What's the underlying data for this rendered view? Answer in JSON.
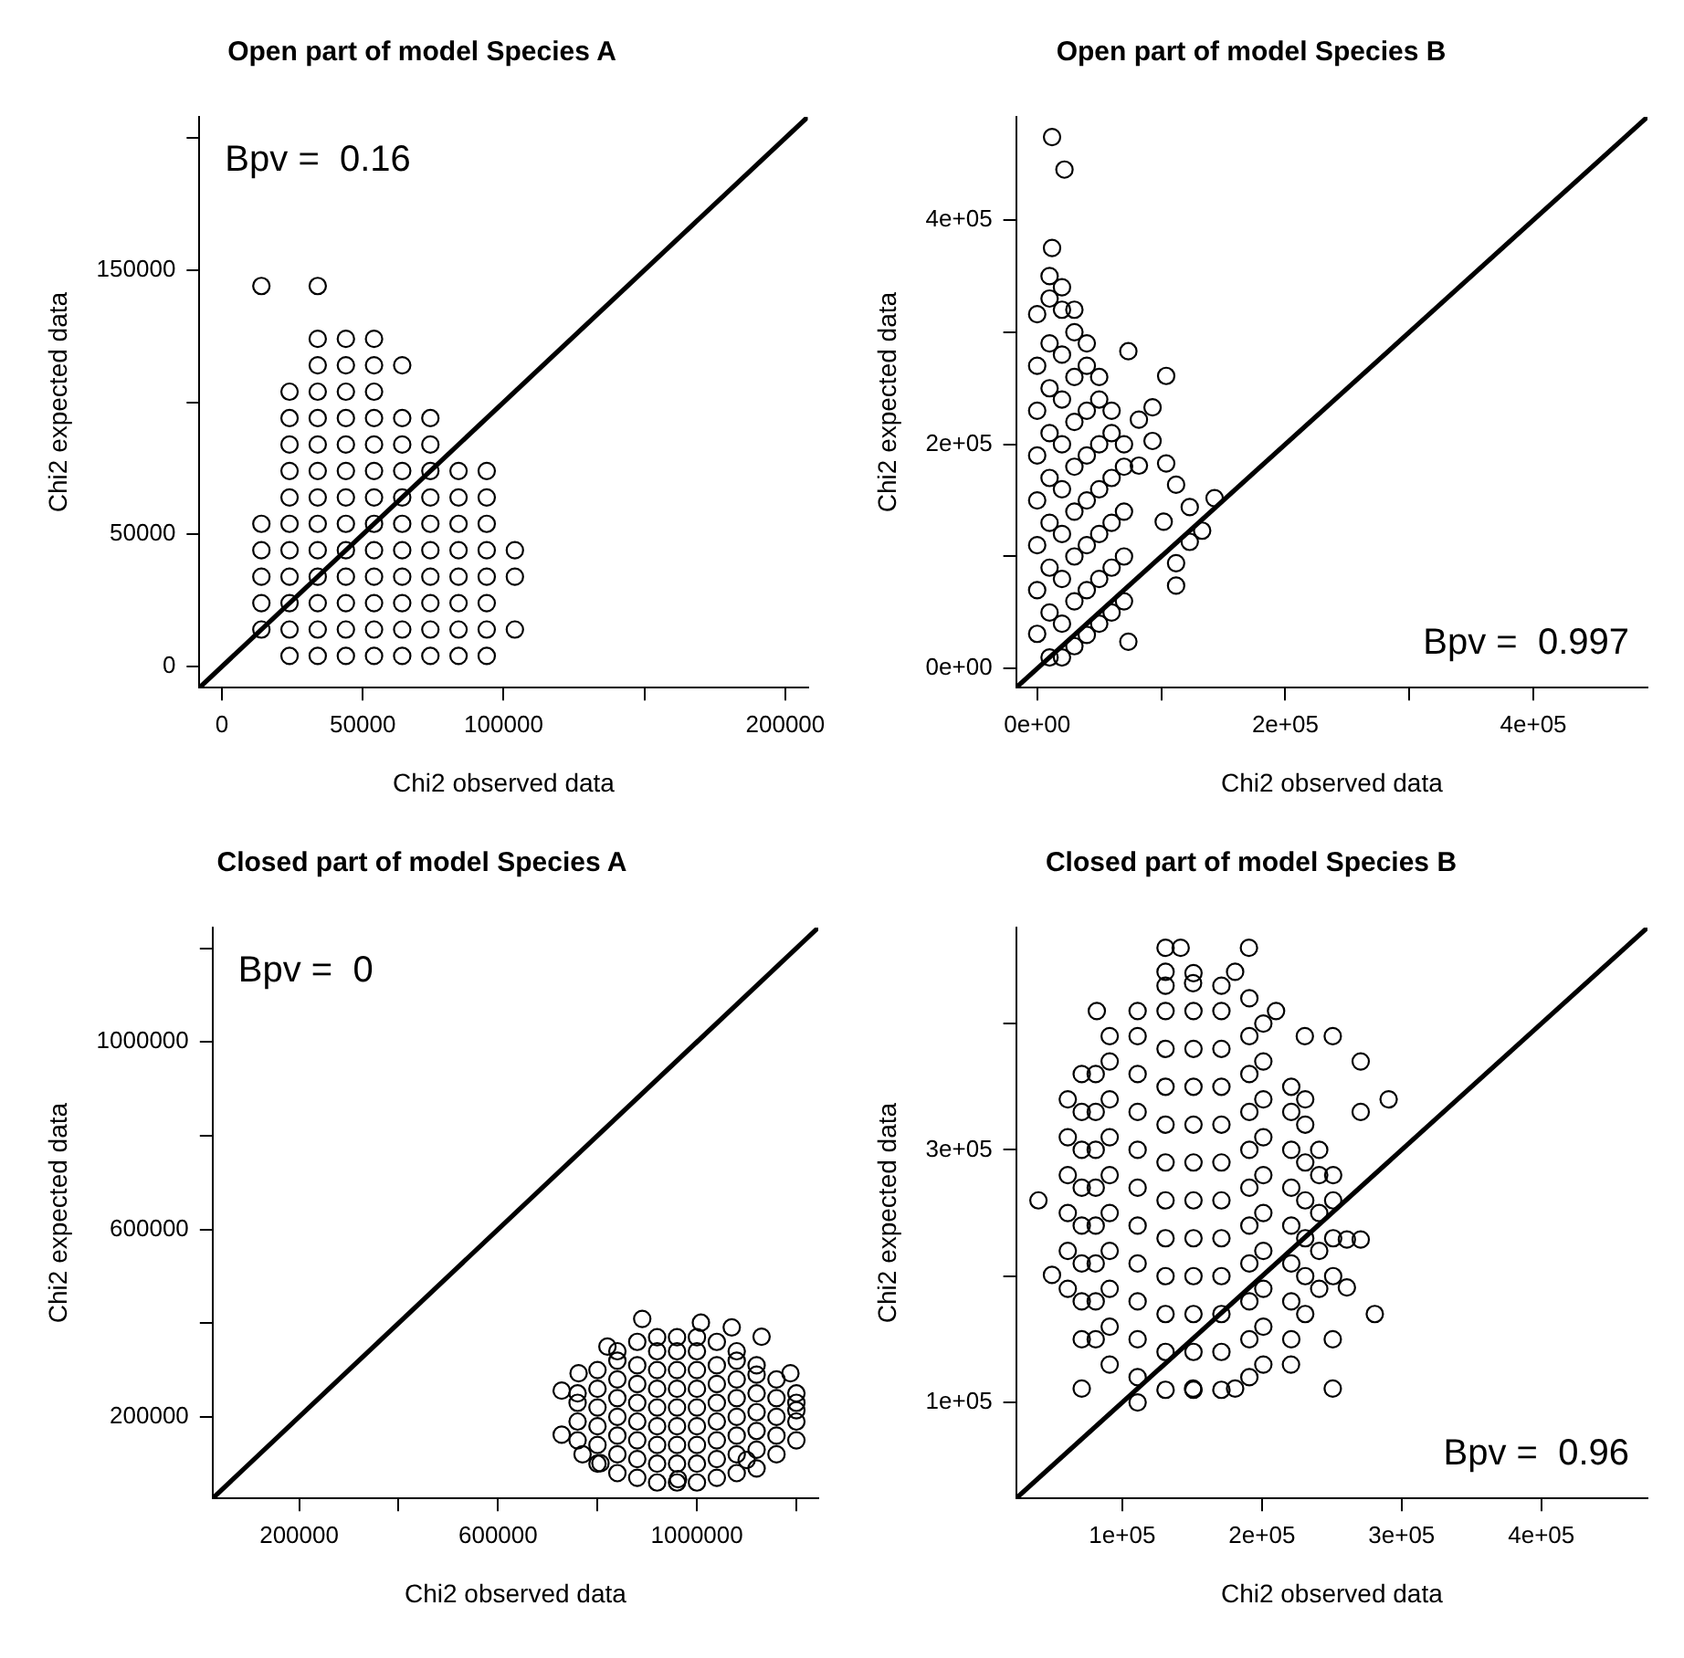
{
  "chart_data": [
    {
      "type": "scatter",
      "title": "Open part of model Species A",
      "xlabel": "Chi2 observed data",
      "ylabel": "Chi2 expected data",
      "marker": "circle",
      "annotations": [
        "Bpv =  0.16"
      ],
      "xlim": [
        -8000,
        208000
      ],
      "ylim": [
        -8000,
        208000
      ],
      "xticks": [
        0,
        50000,
        100000,
        {
          "value": 150000,
          "label": null
        },
        200000
      ],
      "yticks": [
        0,
        50000,
        {
          "value": 100000,
          "label": null
        },
        150000,
        {
          "value": 200000,
          "label": null
        }
      ],
      "series": [
        {
          "color": "#000000",
          "x": [
            14000,
            14000,
            14000,
            14000,
            14000,
            14000,
            24000,
            24000,
            24000,
            24000,
            24000,
            24000,
            24000,
            24000,
            24000,
            24000,
            24000,
            34000,
            34000,
            34000,
            34000,
            34000,
            34000,
            34000,
            34000,
            34000,
            34000,
            34000,
            34000,
            34000,
            34000,
            44000,
            44000,
            44000,
            44000,
            44000,
            44000,
            44000,
            44000,
            44000,
            44000,
            44000,
            44000,
            44000,
            54000,
            54000,
            54000,
            54000,
            54000,
            54000,
            54000,
            54000,
            54000,
            54000,
            54000,
            54000,
            54000,
            64000,
            64000,
            64000,
            64000,
            64000,
            64000,
            64000,
            64000,
            64000,
            64000,
            64000,
            74000,
            74000,
            74000,
            74000,
            74000,
            74000,
            74000,
            74000,
            74000,
            74000,
            84000,
            84000,
            84000,
            84000,
            84000,
            84000,
            84000,
            84000,
            94000,
            94000,
            94000,
            94000,
            94000,
            94000,
            94000,
            94000,
            104000,
            104000,
            104000
          ],
          "values": [
            14000,
            24000,
            34000,
            44000,
            54000,
            144000,
            4000,
            14000,
            24000,
            34000,
            44000,
            54000,
            64000,
            74000,
            84000,
            94000,
            104000,
            4000,
            14000,
            24000,
            34000,
            44000,
            54000,
            64000,
            74000,
            84000,
            94000,
            104000,
            114000,
            124000,
            144000,
            4000,
            14000,
            24000,
            34000,
            44000,
            54000,
            64000,
            74000,
            84000,
            94000,
            104000,
            114000,
            124000,
            4000,
            14000,
            24000,
            34000,
            44000,
            54000,
            64000,
            74000,
            84000,
            94000,
            104000,
            114000,
            124000,
            4000,
            14000,
            24000,
            34000,
            44000,
            54000,
            64000,
            74000,
            84000,
            94000,
            114000,
            4000,
            14000,
            24000,
            34000,
            44000,
            54000,
            64000,
            74000,
            84000,
            94000,
            4000,
            14000,
            24000,
            34000,
            44000,
            54000,
            64000,
            74000,
            4000,
            14000,
            24000,
            34000,
            44000,
            54000,
            64000,
            74000,
            14000,
            34000,
            44000
          ]
        },
        {
          "type": "line",
          "marker": "none",
          "color": "#000000",
          "x": [
            -8000,
            208000
          ],
          "values": [
            -8000,
            208000
          ]
        }
      ]
    },
    {
      "type": "scatter",
      "title": "Open part of model Species B",
      "xlabel": "Chi2 observed data",
      "ylabel": "Chi2 expected data",
      "marker": "circle",
      "annotations": [
        "Bpv =  0.997"
      ],
      "xlim": [
        -17000,
        492000
      ],
      "ylim": [
        -17000,
        492000
      ],
      "xticks": [
        {
          "value": 0,
          "label": "0e+00"
        },
        {
          "value": 100000,
          "label": null
        },
        {
          "value": 200000,
          "label": "2e+05"
        },
        {
          "value": 300000,
          "label": null
        },
        {
          "value": 400000,
          "label": "4e+05"
        }
      ],
      "yticks": [
        {
          "value": 0,
          "label": "0e+00"
        },
        {
          "value": 100000,
          "label": null
        },
        {
          "value": 200000,
          "label": "2e+05"
        },
        {
          "value": 300000,
          "label": null
        },
        {
          "value": 400000,
          "label": "4e+05"
        }
      ],
      "series": [
        {
          "color": "#000000",
          "x": [
            0,
            0,
            0,
            0,
            0,
            0,
            0,
            0,
            10000,
            10000,
            10000,
            10000,
            10000,
            10000,
            10000,
            10000,
            10000,
            10000,
            20000,
            20000,
            20000,
            20000,
            20000,
            20000,
            20000,
            20000,
            20000,
            20000,
            30000,
            30000,
            30000,
            30000,
            30000,
            30000,
            30000,
            30000,
            30000,
            40000,
            40000,
            40000,
            40000,
            40000,
            40000,
            40000,
            40000,
            50000,
            50000,
            50000,
            50000,
            50000,
            50000,
            50000,
            60000,
            60000,
            60000,
            60000,
            60000,
            60000,
            70000,
            70000,
            70000,
            70000,
            70000,
            12000,
            22000,
            12000,
            73500,
            112000,
            112000,
            123000,
            133000,
            143000,
            123000,
            112000,
            104000,
            93000,
            93000,
            82000,
            104000,
            73500,
            102000,
            82000
          ],
          "values": [
            31000,
            70000,
            110000,
            150000,
            190000,
            230000,
            270000,
            316000,
            10000,
            50000,
            90000,
            130000,
            170000,
            210000,
            250000,
            290000,
            330000,
            350000,
            10000,
            40000,
            80000,
            120000,
            160000,
            200000,
            240000,
            280000,
            320000,
            340000,
            20000,
            60000,
            100000,
            140000,
            180000,
            220000,
            260000,
            300000,
            320000,
            30000,
            70000,
            110000,
            150000,
            190000,
            230000,
            270000,
            290000,
            40000,
            80000,
            120000,
            160000,
            200000,
            240000,
            260000,
            50000,
            90000,
            130000,
            170000,
            210000,
            230000,
            60000,
            100000,
            140000,
            180000,
            200000,
            474000,
            445000,
            375000,
            24000,
            74000,
            94000,
            113000,
            123000,
            152000,
            144000,
            164000,
            183000,
            203000,
            233000,
            222000,
            261000,
            283000,
            131000,
            181000
          ]
        },
        {
          "type": "line",
          "marker": "none",
          "color": "#000000",
          "x": [
            -17000,
            492000
          ],
          "values": [
            -17000,
            492000
          ]
        }
      ]
    },
    {
      "type": "scatter",
      "title": "Closed part of model Species A",
      "xlabel": "Chi2 observed data",
      "ylabel": "Chi2 expected data",
      "marker": "circle",
      "annotations": [
        "Bpv =  0"
      ],
      "xlim": [
        26000,
        1244000
      ],
      "ylim": [
        26000,
        1244000
      ],
      "xticks": [
        200000,
        {
          "value": 400000,
          "label": null
        },
        600000,
        {
          "value": 800000,
          "label": null
        },
        1000000,
        {
          "value": 1200000,
          "label": null
        }
      ],
      "yticks": [
        200000,
        {
          "value": 400000,
          "label": null
        },
        600000,
        {
          "value": 800000,
          "label": null
        },
        1000000,
        {
          "value": 1200000,
          "label": null
        }
      ],
      "series": [
        {
          "color": "#000000",
          "x": [
            760000,
            760000,
            760000,
            760000,
            800000,
            800000,
            800000,
            800000,
            800000,
            800000,
            840000,
            840000,
            840000,
            840000,
            840000,
            840000,
            840000,
            840000,
            880000,
            880000,
            880000,
            880000,
            880000,
            880000,
            880000,
            880000,
            920000,
            920000,
            920000,
            920000,
            920000,
            920000,
            920000,
            920000,
            920000,
            960000,
            960000,
            960000,
            960000,
            960000,
            960000,
            960000,
            960000,
            960000,
            1000000,
            1000000,
            1000000,
            1000000,
            1000000,
            1000000,
            1000000,
            1000000,
            1000000,
            1040000,
            1040000,
            1040000,
            1040000,
            1040000,
            1040000,
            1040000,
            1040000,
            1080000,
            1080000,
            1080000,
            1080000,
            1080000,
            1080000,
            1080000,
            1080000,
            1120000,
            1120000,
            1120000,
            1120000,
            1120000,
            1120000,
            1120000,
            1160000,
            1160000,
            1160000,
            1160000,
            1160000,
            1200000,
            1200000,
            1200000,
            1200000,
            890000,
            1008000,
            1070000,
            1130000,
            820000,
            1188000,
            1200000,
            728000,
            728000,
            762000,
            770000,
            806000,
            962000,
            1100000
          ],
          "values": [
            150000,
            190000,
            230000,
            250000,
            100000,
            140000,
            180000,
            220000,
            260000,
            300000,
            80000,
            120000,
            160000,
            200000,
            240000,
            280000,
            320000,
            340000,
            70000,
            110000,
            150000,
            190000,
            230000,
            270000,
            310000,
            360000,
            60000,
            100000,
            140000,
            180000,
            220000,
            260000,
            300000,
            340000,
            370000,
            60000,
            100000,
            140000,
            180000,
            220000,
            260000,
            300000,
            340000,
            370000,
            60000,
            100000,
            140000,
            180000,
            220000,
            260000,
            300000,
            340000,
            370000,
            70000,
            110000,
            150000,
            190000,
            230000,
            270000,
            310000,
            360000,
            80000,
            120000,
            160000,
            200000,
            240000,
            280000,
            320000,
            340000,
            90000,
            130000,
            170000,
            210000,
            250000,
            290000,
            310000,
            120000,
            160000,
            200000,
            240000,
            280000,
            150000,
            190000,
            230000,
            250000,
            409000,
            401000,
            391000,
            371000,
            350000,
            293000,
            214000,
            256000,
            162000,
            293000,
            120000,
            101000,
            67000,
            108000
          ]
        },
        {
          "type": "line",
          "marker": "none",
          "color": "#000000",
          "x": [
            26000,
            1244000
          ],
          "values": [
            26000,
            1244000
          ]
        }
      ]
    },
    {
      "type": "scatter",
      "title": "Closed part of model Species B",
      "xlabel": "Chi2 observed data",
      "ylabel": "Chi2 expected data",
      "marker": "circle",
      "annotations": [
        "Bpv =  0.96"
      ],
      "xlim": [
        24000,
        476000
      ],
      "ylim": [
        24000,
        476000
      ],
      "xticks": [
        {
          "value": 100000,
          "label": "1e+05"
        },
        {
          "value": 200000,
          "label": "2e+05"
        },
        {
          "value": 300000,
          "label": "3e+05"
        },
        {
          "value": 400000,
          "label": "4e+05"
        }
      ],
      "yticks": [
        {
          "value": 100000,
          "label": "1e+05"
        },
        {
          "value": 200000,
          "label": null
        },
        {
          "value": 300000,
          "label": "3e+05"
        },
        {
          "value": 400000,
          "label": null
        }
      ],
      "series": [
        {
          "color": "#000000",
          "x": [
            61000,
            61000,
            61000,
            61000,
            61000,
            61000,
            71000,
            71000,
            71000,
            71000,
            71000,
            71000,
            71000,
            71000,
            81000,
            81000,
            81000,
            81000,
            81000,
            81000,
            81000,
            81000,
            91000,
            91000,
            91000,
            91000,
            91000,
            91000,
            91000,
            91000,
            91000,
            91000,
            111000,
            111000,
            111000,
            111000,
            111000,
            111000,
            111000,
            111000,
            111000,
            111000,
            111000,
            131000,
            131000,
            131000,
            131000,
            131000,
            131000,
            131000,
            131000,
            131000,
            131000,
            131000,
            131000,
            151000,
            151000,
            151000,
            151000,
            151000,
            151000,
            151000,
            151000,
            151000,
            151000,
            151000,
            151000,
            171000,
            171000,
            171000,
            171000,
            171000,
            171000,
            171000,
            171000,
            171000,
            171000,
            171000,
            171000,
            191000,
            191000,
            191000,
            191000,
            191000,
            191000,
            191000,
            191000,
            191000,
            191000,
            191000,
            201000,
            201000,
            201000,
            201000,
            201000,
            201000,
            201000,
            201000,
            201000,
            201000,
            221000,
            221000,
            221000,
            221000,
            221000,
            221000,
            221000,
            221000,
            231000,
            231000,
            231000,
            231000,
            231000,
            231000,
            231000,
            241000,
            241000,
            241000,
            241000,
            241000,
            251000,
            251000,
            251000,
            251000,
            131000,
            141800,
            190700,
            131000,
            180800,
            81800,
            250700,
            270700,
            290700,
            270700,
            40000,
            49700,
            280800,
            250700,
            250700,
            71000,
            111000,
            220800,
            260800,
            270700,
            260800,
            180800,
            150700,
            230700,
            210100,
            150700
          ],
          "values": [
            190000,
            220000,
            250000,
            280000,
            310000,
            340000,
            150000,
            180000,
            210000,
            240000,
            270000,
            300000,
            330000,
            360000,
            150000,
            180000,
            210000,
            240000,
            270000,
            300000,
            330000,
            360000,
            130000,
            160000,
            190000,
            220000,
            250000,
            280000,
            310000,
            340000,
            370000,
            390000,
            120000,
            150000,
            180000,
            210000,
            240000,
            270000,
            300000,
            330000,
            360000,
            390000,
            410000,
            110000,
            140000,
            170000,
            200000,
            230000,
            260000,
            290000,
            320000,
            350000,
            380000,
            410000,
            430000,
            110000,
            140000,
            170000,
            200000,
            230000,
            260000,
            290000,
            320000,
            350000,
            380000,
            410000,
            440000,
            110000,
            140000,
            170000,
            200000,
            230000,
            260000,
            290000,
            320000,
            350000,
            380000,
            410000,
            430000,
            120000,
            150000,
            180000,
            210000,
            240000,
            270000,
            300000,
            330000,
            360000,
            390000,
            420000,
            130000,
            160000,
            190000,
            220000,
            250000,
            280000,
            310000,
            340000,
            370000,
            400000,
            150000,
            180000,
            210000,
            240000,
            270000,
            300000,
            330000,
            350000,
            170000,
            200000,
            230000,
            260000,
            290000,
            320000,
            340000,
            190000,
            220000,
            250000,
            280000,
            300000,
            200000,
            230000,
            260000,
            280000,
            460000,
            460000,
            460000,
            441000,
            441000,
            410000,
            390000,
            370000,
            340000,
            330000,
            260000,
            201000,
            170000,
            150000,
            111000,
            111000,
            100000,
            130000,
            229000,
            229000,
            191000,
            111000,
            111000,
            390000,
            410000,
            432000
          ]
        },
        {
          "type": "line",
          "marker": "none",
          "color": "#000000",
          "x": [
            24000,
            476000
          ],
          "values": [
            24000,
            476000
          ]
        }
      ]
    }
  ]
}
